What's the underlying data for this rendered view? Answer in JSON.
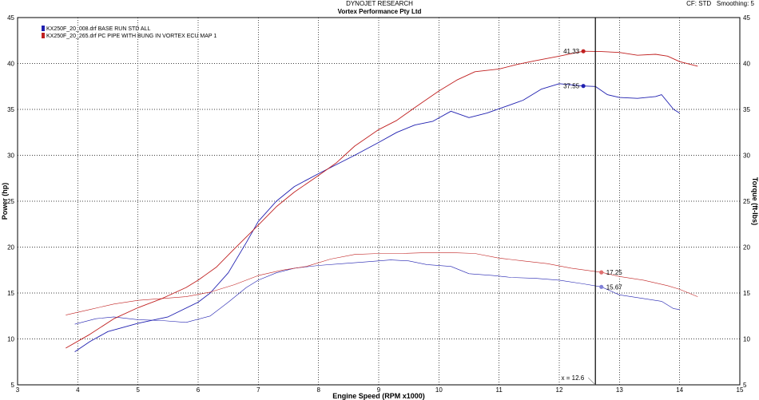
{
  "header": {
    "title_line1": "DYNOJET RESEARCH",
    "title_line2": "Vortex Performance Pty Ltd",
    "cf_label": "CF: STD",
    "smoothing_label": "Smoothing: 5"
  },
  "chart_data": {
    "type": "line",
    "xlabel": "Engine Speed (RPM x1000)",
    "ylabel_left": "Power (hp)",
    "ylabel_right": "Torque (ft-lbs)",
    "xlim": [
      3,
      15
    ],
    "ylim": [
      5,
      45
    ],
    "x_ticks": [
      "3",
      "4",
      "5",
      "6",
      "7",
      "8",
      "9",
      "10",
      "11",
      "12",
      "13",
      "14",
      "15"
    ],
    "y_ticks": [
      "5",
      "10",
      "15",
      "20",
      "25",
      "30",
      "35",
      "40",
      "45"
    ],
    "grid": true,
    "legend_position": "top-left",
    "cursor": {
      "x": 12.6,
      "label": "x = 12.6"
    },
    "markers": [
      {
        "series": 1,
        "kind": "power",
        "x": 12.4,
        "y": 41.33,
        "label": "41.33"
      },
      {
        "series": 0,
        "kind": "power",
        "x": 12.4,
        "y": 37.55,
        "label": "37.55"
      },
      {
        "series": 1,
        "kind": "torque",
        "x": 12.7,
        "y": 17.25,
        "label": "17.25"
      },
      {
        "series": 0,
        "kind": "torque",
        "x": 12.7,
        "y": 15.67,
        "label": "15.67"
      }
    ],
    "series": [
      {
        "name": "KX250F_20_008.drf BASE RUN STD ALL",
        "color": "#2020b0",
        "power": [
          [
            3.95,
            8.6
          ],
          [
            4.2,
            9.7
          ],
          [
            4.5,
            10.8
          ],
          [
            5.0,
            11.7
          ],
          [
            5.5,
            12.4
          ],
          [
            6.0,
            14.0
          ],
          [
            6.2,
            15.0
          ],
          [
            6.5,
            17.2
          ],
          [
            6.8,
            20.5
          ],
          [
            7.0,
            22.8
          ],
          [
            7.3,
            25.0
          ],
          [
            7.6,
            26.6
          ],
          [
            8.0,
            28.0
          ],
          [
            8.3,
            29.0
          ],
          [
            8.6,
            30.0
          ],
          [
            9.0,
            31.4
          ],
          [
            9.3,
            32.5
          ],
          [
            9.6,
            33.3
          ],
          [
            9.9,
            33.7
          ],
          [
            10.2,
            34.8
          ],
          [
            10.5,
            34.1
          ],
          [
            10.8,
            34.6
          ],
          [
            11.1,
            35.3
          ],
          [
            11.4,
            36.0
          ],
          [
            11.7,
            37.2
          ],
          [
            12.0,
            37.8
          ],
          [
            12.4,
            37.55
          ],
          [
            12.6,
            37.5
          ],
          [
            12.8,
            36.6
          ],
          [
            13.0,
            36.3
          ],
          [
            13.3,
            36.2
          ],
          [
            13.6,
            36.4
          ],
          [
            13.7,
            36.6
          ],
          [
            13.9,
            35.0
          ],
          [
            14.0,
            34.6
          ]
        ],
        "torque": [
          [
            3.95,
            11.6
          ],
          [
            4.3,
            12.2
          ],
          [
            4.6,
            12.4
          ],
          [
            5.0,
            12.1
          ],
          [
            5.4,
            12.0
          ],
          [
            5.8,
            11.8
          ],
          [
            6.2,
            12.5
          ],
          [
            6.5,
            14.0
          ],
          [
            6.8,
            15.6
          ],
          [
            7.0,
            16.4
          ],
          [
            7.3,
            17.2
          ],
          [
            7.6,
            17.7
          ],
          [
            8.0,
            18.0
          ],
          [
            8.4,
            18.2
          ],
          [
            8.8,
            18.4
          ],
          [
            9.2,
            18.6
          ],
          [
            9.5,
            18.5
          ],
          [
            9.8,
            18.1
          ],
          [
            10.2,
            17.9
          ],
          [
            10.5,
            17.1
          ],
          [
            10.9,
            16.9
          ],
          [
            11.2,
            16.7
          ],
          [
            11.6,
            16.6
          ],
          [
            12.0,
            16.4
          ],
          [
            12.4,
            16.0
          ],
          [
            12.7,
            15.67
          ],
          [
            13.0,
            14.8
          ],
          [
            13.4,
            14.4
          ],
          [
            13.7,
            14.1
          ],
          [
            13.9,
            13.3
          ],
          [
            14.0,
            13.2
          ]
        ]
      },
      {
        "name": "KX250F_20_265.drf PC PIPE WITH BUNG IN VORTEX ECU MAP 1",
        "color": "#c02020",
        "power": [
          [
            3.8,
            9.0
          ],
          [
            4.2,
            10.5
          ],
          [
            4.6,
            12.2
          ],
          [
            5.0,
            13.4
          ],
          [
            5.4,
            14.4
          ],
          [
            5.8,
            15.6
          ],
          [
            6.0,
            16.4
          ],
          [
            6.3,
            17.8
          ],
          [
            6.6,
            19.8
          ],
          [
            7.0,
            22.4
          ],
          [
            7.3,
            24.4
          ],
          [
            7.6,
            26.0
          ],
          [
            8.0,
            27.8
          ],
          [
            8.3,
            29.2
          ],
          [
            8.6,
            31.0
          ],
          [
            9.0,
            32.8
          ],
          [
            9.3,
            33.8
          ],
          [
            9.6,
            35.2
          ],
          [
            10.0,
            37.0
          ],
          [
            10.3,
            38.2
          ],
          [
            10.6,
            39.1
          ],
          [
            11.0,
            39.4
          ],
          [
            11.3,
            39.9
          ],
          [
            11.6,
            40.3
          ],
          [
            12.0,
            40.8
          ],
          [
            12.4,
            41.33
          ],
          [
            12.7,
            41.3
          ],
          [
            13.0,
            41.2
          ],
          [
            13.3,
            40.9
          ],
          [
            13.6,
            41.0
          ],
          [
            13.8,
            40.8
          ],
          [
            14.0,
            40.2
          ],
          [
            14.3,
            39.7
          ]
        ],
        "torque": [
          [
            3.8,
            12.6
          ],
          [
            4.2,
            13.2
          ],
          [
            4.6,
            13.8
          ],
          [
            5.0,
            14.2
          ],
          [
            5.4,
            14.4
          ],
          [
            5.8,
            14.6
          ],
          [
            6.2,
            15.1
          ],
          [
            6.6,
            15.9
          ],
          [
            7.0,
            16.9
          ],
          [
            7.4,
            17.5
          ],
          [
            7.8,
            17.9
          ],
          [
            8.2,
            18.7
          ],
          [
            8.6,
            19.2
          ],
          [
            9.0,
            19.3
          ],
          [
            9.4,
            19.3
          ],
          [
            9.8,
            19.4
          ],
          [
            10.2,
            19.4
          ],
          [
            10.6,
            19.3
          ],
          [
            11.0,
            18.8
          ],
          [
            11.4,
            18.5
          ],
          [
            11.8,
            18.2
          ],
          [
            12.2,
            17.7
          ],
          [
            12.7,
            17.25
          ],
          [
            13.0,
            16.8
          ],
          [
            13.4,
            16.4
          ],
          [
            13.8,
            15.8
          ],
          [
            14.0,
            15.4
          ],
          [
            14.3,
            14.6
          ]
        ]
      }
    ]
  }
}
